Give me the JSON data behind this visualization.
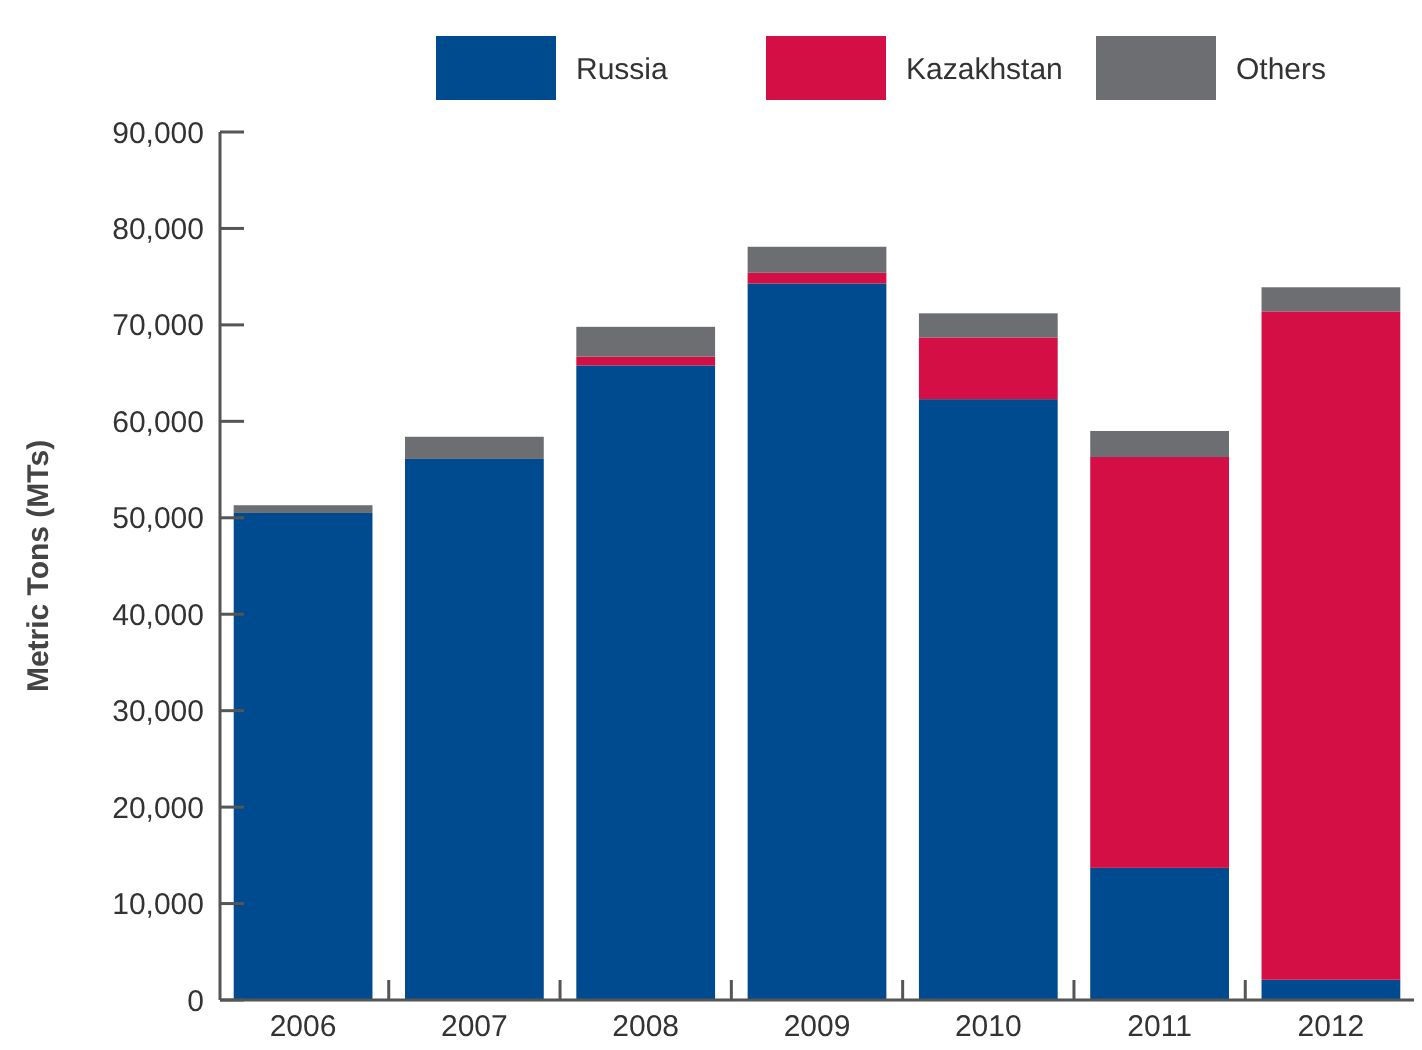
{
  "chart_data": {
    "type": "bar",
    "stacked": true,
    "ylabel": "Metric Tons (MTs)",
    "categories": [
      "2006",
      "2007",
      "2008",
      "2009",
      "2010",
      "2011",
      "2012"
    ],
    "series": [
      {
        "name": "Russia",
        "color": "#004a8f",
        "values": [
          50500,
          56100,
          65800,
          74300,
          62300,
          13700,
          2100
        ]
      },
      {
        "name": "Kazakhstan",
        "color": "#d30f45",
        "values": [
          0,
          0,
          900,
          1100,
          6400,
          42600,
          69300
        ]
      },
      {
        "name": "Others",
        "color": "#6d6e71",
        "values": [
          800,
          2300,
          3100,
          2700,
          2500,
          2700,
          2500
        ]
      }
    ],
    "ylim": [
      0,
      90000
    ],
    "yticks": [
      {
        "value": 0,
        "label": "0"
      },
      {
        "value": 10000,
        "label": "10,000"
      },
      {
        "value": 20000,
        "label": "20,000"
      },
      {
        "value": 30000,
        "label": "30,000"
      },
      {
        "value": 40000,
        "label": "40,000"
      },
      {
        "value": 50000,
        "label": "50,000"
      },
      {
        "value": 60000,
        "label": "60,000"
      },
      {
        "value": 70000,
        "label": "70,000"
      },
      {
        "value": 80000,
        "label": "80,000"
      },
      {
        "value": 90000,
        "label": "90,000"
      }
    ],
    "legend": "top",
    "grid": false
  }
}
